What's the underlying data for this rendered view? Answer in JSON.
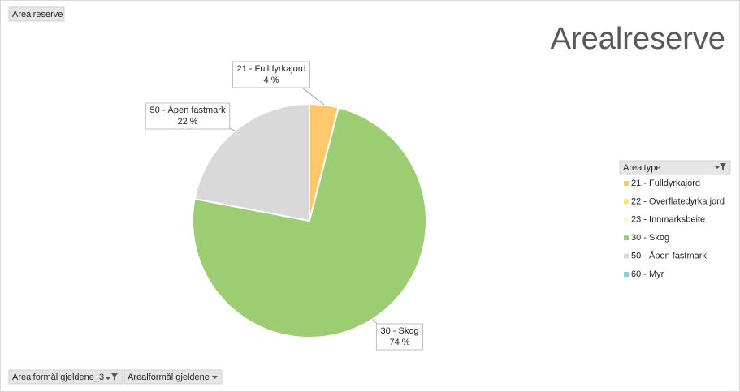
{
  "chart_data": {
    "type": "pie",
    "title": "Arealreserve",
    "filter_button": "Arealreserve",
    "legend_title": "Arealtype",
    "axis_buttons": [
      "Arealformål gjeldene_3",
      "Arealformål gjeldene"
    ],
    "categories": [
      "21 - Fulldyrkajord",
      "22 - Overflatedyrka jord",
      "23 - Innmarksbeite",
      "30 - Skog",
      "50 - Åpen fastmark",
      "60 - Myr"
    ],
    "values": [
      4,
      0,
      0,
      74,
      22,
      0
    ],
    "value_labels": [
      "4 %",
      null,
      null,
      "74 %",
      "22 %",
      null
    ],
    "colors": [
      "#ffc96b",
      "#ffe27a",
      "#fff6c4",
      "#9dcd72",
      "#d9d9d9",
      "#7fd0ea"
    ],
    "legend": "right"
  }
}
